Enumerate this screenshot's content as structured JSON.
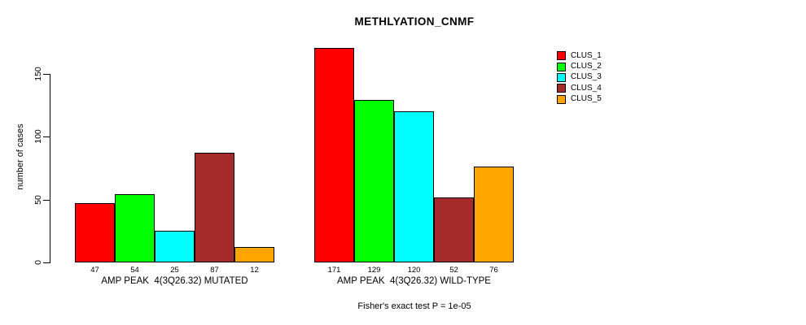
{
  "chart_data": {
    "type": "bar",
    "title": "METHLYATION_CNMF",
    "ylabel": "number of cases",
    "xlabel": "",
    "ylim": [
      0,
      175
    ],
    "yticks": [
      0,
      50,
      100,
      150
    ],
    "grid": false,
    "legend_position": "right",
    "bar_border_color": "#000000",
    "categories": [
      "AMP PEAK  4(3Q26.32) MUTATED",
      "AMP PEAK  4(3Q26.32) WILD-TYPE"
    ],
    "series": [
      {
        "name": "CLUS_1",
        "color": "#FF0000",
        "values": [
          47,
          171
        ]
      },
      {
        "name": "CLUS_2",
        "color": "#00FF00",
        "values": [
          54,
          129
        ]
      },
      {
        "name": "CLUS_3",
        "color": "#00FFFF",
        "values": [
          25,
          120
        ]
      },
      {
        "name": "CLUS_4",
        "color": "#A52A2A",
        "values": [
          87,
          52
        ]
      },
      {
        "name": "CLUS_5",
        "color": "#FFA500",
        "values": [
          12,
          76
        ]
      }
    ],
    "groups": [
      {
        "label": "AMP PEAK  4(3Q26.32) MUTATED",
        "values": [
          47,
          54,
          25,
          87,
          12
        ]
      },
      {
        "label": "AMP PEAK  4(3Q26.32) WILD-TYPE",
        "values": [
          171,
          129,
          120,
          52,
          76
        ]
      }
    ],
    "legend": [
      {
        "label": "CLUS_1",
        "color": "#FF0000"
      },
      {
        "label": "CLUS_2",
        "color": "#00FF00"
      },
      {
        "label": "CLUS_3",
        "color": "#00FFFF"
      },
      {
        "label": "CLUS_4",
        "color": "#A52A2A"
      },
      {
        "label": "CLUS_5",
        "color": "#FFA500"
      }
    ],
    "annotation": "Fisher's exact test P = 1e-05"
  }
}
